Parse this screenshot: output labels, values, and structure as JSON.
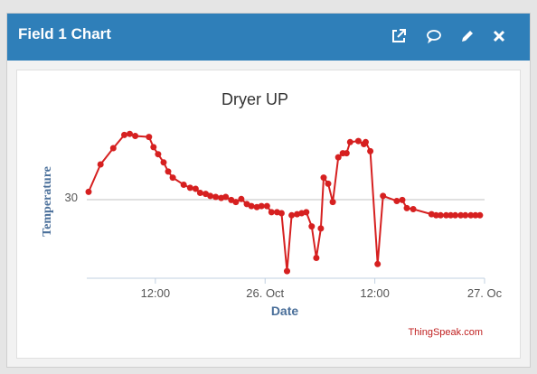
{
  "widget": {
    "title": "Field 1 Chart",
    "icons": [
      "external-link-icon",
      "comment-icon",
      "pencil-icon",
      "close-icon"
    ]
  },
  "chart_data": {
    "type": "line",
    "title": "Dryer UP",
    "xlabel": "Date",
    "ylabel": "Temperature",
    "y_ticks": [
      30
    ],
    "x_ticks": [
      "12:00",
      "26. Oct",
      "12:00",
      "27. Oc"
    ],
    "x_tick_hours": [
      12,
      24,
      36,
      48
    ],
    "x_range_hours": [
      4.5,
      48
    ],
    "ylim": [
      22,
      38
    ],
    "grid": "horizontal",
    "color": "#d62020",
    "credit": "ThingSpeak.com",
    "series": [
      {
        "x": [
          4.7,
          6.0,
          7.4,
          8.6,
          9.2,
          9.8,
          11.3,
          11.8,
          12.3,
          12.9,
          13.4,
          13.9,
          15.1,
          15.8,
          16.4,
          16.9,
          17.5,
          18.0,
          18.6,
          19.2,
          19.7,
          20.3,
          20.8,
          21.4,
          22.0,
          22.5,
          23.1,
          23.6,
          24.2,
          24.7,
          25.3,
          25.8,
          26.4,
          26.9,
          27.5,
          28.0,
          28.5,
          29.1,
          29.6,
          30.1,
          30.4,
          30.9,
          31.4,
          32.0,
          32.5,
          32.9,
          33.3,
          34.2,
          34.8,
          35.0,
          35.5,
          36.3,
          36.9,
          38.4,
          39.0,
          39.5,
          40.2,
          42.2,
          42.7,
          43.2,
          43.8,
          44.3,
          44.8,
          45.4,
          45.9,
          46.5,
          47.0,
          47.5
        ],
        "y": [
          30.5,
          33.2,
          34.8,
          36.1,
          36.2,
          36.0,
          35.9,
          34.9,
          34.2,
          33.4,
          32.5,
          31.9,
          31.2,
          30.9,
          30.8,
          30.4,
          30.3,
          30.1,
          30.0,
          29.9,
          30.0,
          29.7,
          29.5,
          29.8,
          29.3,
          29.1,
          29.0,
          29.1,
          29.1,
          28.5,
          28.5,
          28.4,
          22.7,
          28.2,
          28.3,
          28.4,
          28.5,
          27.1,
          24.0,
          26.9,
          31.9,
          31.3,
          29.5,
          33.9,
          34.3,
          34.3,
          35.4,
          35.5,
          35.2,
          35.4,
          34.5,
          23.4,
          30.1,
          29.6,
          29.7,
          28.9,
          28.8,
          28.3,
          28.2,
          28.2,
          28.2,
          28.2,
          28.2,
          28.2,
          28.2,
          28.2,
          28.2,
          28.2
        ]
      }
    ]
  }
}
